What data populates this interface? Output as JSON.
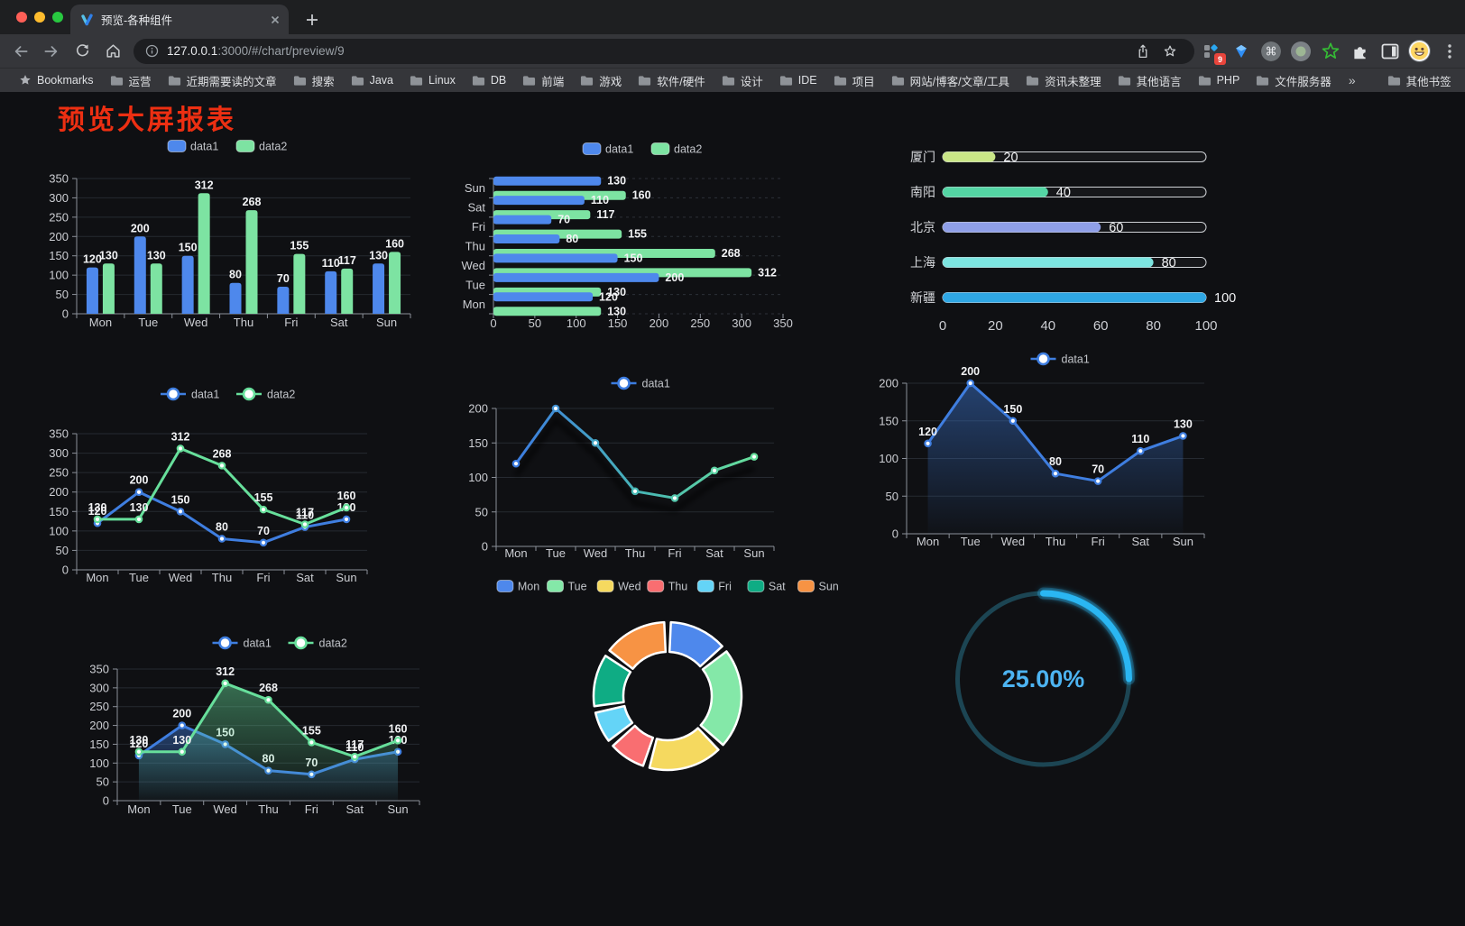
{
  "browser": {
    "tab_title": "预览-各种组件",
    "url_host": "127.0.0.1",
    "url_rest": ":3000/#/chart/preview/9",
    "extension_badge": "9",
    "bookmarks": {
      "items": [
        {
          "label": "Bookmarks",
          "icon": "star"
        },
        {
          "label": "运营",
          "icon": "folder"
        },
        {
          "label": "近期需要读的文章",
          "icon": "folder"
        },
        {
          "label": "搜索",
          "icon": "folder"
        },
        {
          "label": "Java",
          "icon": "folder"
        },
        {
          "label": "Linux",
          "icon": "folder"
        },
        {
          "label": "DB",
          "icon": "folder"
        },
        {
          "label": "前端",
          "icon": "folder"
        },
        {
          "label": "游戏",
          "icon": "folder"
        },
        {
          "label": "软件/硬件",
          "icon": "folder"
        },
        {
          "label": "设计",
          "icon": "folder"
        },
        {
          "label": "IDE",
          "icon": "folder"
        },
        {
          "label": "项目",
          "icon": "folder"
        },
        {
          "label": "网站/博客/文章/工具",
          "icon": "folder"
        },
        {
          "label": "资讯未整理",
          "icon": "folder"
        },
        {
          "label": "其他语言",
          "icon": "folder"
        },
        {
          "label": "PHP",
          "icon": "folder"
        },
        {
          "label": "文件服务器",
          "icon": "folder"
        }
      ],
      "overflow": "»",
      "other_bookmarks": "其他书签"
    }
  },
  "page": {
    "title": "预览大屏报表",
    "title_color": "#ed2f12",
    "background": "#0f1013"
  },
  "chart_data": [
    {
      "id": "grouped-bar",
      "type": "bar",
      "categories": [
        "Mon",
        "Tue",
        "Wed",
        "Thu",
        "Fri",
        "Sat",
        "Sun"
      ],
      "series": [
        {
          "name": "data1",
          "color": "#4e88ec",
          "values": [
            120,
            200,
            150,
            80,
            70,
            110,
            130
          ]
        },
        {
          "name": "data2",
          "color": "#7de3a2",
          "values": [
            130,
            130,
            312,
            268,
            155,
            117,
            160
          ]
        }
      ],
      "ylim": [
        0,
        350
      ],
      "ystep": 50,
      "legend": "rect",
      "grid": true
    },
    {
      "id": "horizontal-bar",
      "type": "hbar",
      "categories": [
        "Mon",
        "Tue",
        "Wed",
        "Thu",
        "Fri",
        "Sat",
        "Sun"
      ],
      "series": [
        {
          "name": "data1",
          "color": "#4e88ec",
          "values": [
            120,
            200,
            150,
            80,
            70,
            110,
            130
          ]
        },
        {
          "name": "data2",
          "color": "#7de3a2",
          "values": [
            130,
            130,
            312,
            268,
            155,
            117,
            160
          ]
        }
      ],
      "xlim": [
        0,
        350
      ],
      "xstep": 50,
      "legend": "rect"
    },
    {
      "id": "progress-bars",
      "type": "progress",
      "max": 100,
      "items": [
        {
          "label": "厦门",
          "value": 20,
          "color": "#c9e687"
        },
        {
          "label": "南阳",
          "value": 40,
          "color": "#54d5a4"
        },
        {
          "label": "北京",
          "value": 60,
          "color": "#8f9fe8"
        },
        {
          "label": "上海",
          "value": 80,
          "color": "#7ce4e0"
        },
        {
          "label": "新疆",
          "value": 100,
          "color": "#2fa7e4"
        }
      ],
      "xticks": [
        0,
        20,
        40,
        60,
        80,
        100
      ]
    },
    {
      "id": "line-two-series",
      "type": "line",
      "categories": [
        "Mon",
        "Tue",
        "Wed",
        "Thu",
        "Fri",
        "Sat",
        "Sun"
      ],
      "series": [
        {
          "name": "data1",
          "color": "#3f7ee0",
          "values": [
            120,
            200,
            150,
            80,
            70,
            110,
            130
          ]
        },
        {
          "name": "data2",
          "color": "#67df9b",
          "values": [
            130,
            130,
            312,
            268,
            155,
            117,
            160
          ]
        }
      ],
      "ylim": [
        0,
        350
      ],
      "ystep": 50,
      "labels": true,
      "legend": "dot"
    },
    {
      "id": "line-gradient",
      "type": "line-gradient",
      "categories": [
        "Mon",
        "Tue",
        "Wed",
        "Thu",
        "Fri",
        "Sat",
        "Sun"
      ],
      "series": [
        {
          "name": "data1",
          "colors": [
            "#3c7ce0",
            "#49b9b4",
            "#67df9b"
          ],
          "values": [
            120,
            200,
            150,
            80,
            70,
            110,
            130
          ]
        }
      ],
      "ylim": [
        0,
        200
      ],
      "ystep": 50,
      "labels": false,
      "legend": "dot"
    },
    {
      "id": "area-single",
      "type": "area",
      "categories": [
        "Mon",
        "Tue",
        "Wed",
        "Thu",
        "Fri",
        "Sat",
        "Sun"
      ],
      "series": [
        {
          "name": "data1",
          "color": "#3f7ee0",
          "values": [
            120,
            200,
            150,
            80,
            70,
            110,
            130
          ]
        }
      ],
      "ylim": [
        0,
        200
      ],
      "ystep": 50,
      "labels": true,
      "legend": "dot"
    },
    {
      "id": "area-two-series",
      "type": "area",
      "categories": [
        "Mon",
        "Tue",
        "Wed",
        "Thu",
        "Fri",
        "Sat",
        "Sun"
      ],
      "series": [
        {
          "name": "data1",
          "color": "#3f7ee0",
          "values": [
            120,
            200,
            150,
            80,
            70,
            110,
            130
          ]
        },
        {
          "name": "data2",
          "color": "#67df9b",
          "values": [
            130,
            130,
            312,
            268,
            155,
            117,
            160
          ]
        }
      ],
      "ylim": [
        0,
        350
      ],
      "ystep": 50,
      "labels": true,
      "legend": "dot"
    },
    {
      "id": "donut",
      "type": "donut",
      "labels": [
        "Mon",
        "Tue",
        "Wed",
        "Thu",
        "Fri",
        "Sat",
        "Sun"
      ],
      "values": [
        120,
        200,
        150,
        80,
        70,
        110,
        130
      ],
      "colors": [
        "#4e88ec",
        "#84e8a8",
        "#f5d95f",
        "#f96e71",
        "#64d4f7",
        "#0fac84",
        "#f79344"
      ]
    },
    {
      "id": "gauge",
      "type": "gauge",
      "value": 25,
      "display": "25.00%",
      "color": "#2ab6f2",
      "track": "#1c4553",
      "text_color": "#4db4f2"
    }
  ]
}
